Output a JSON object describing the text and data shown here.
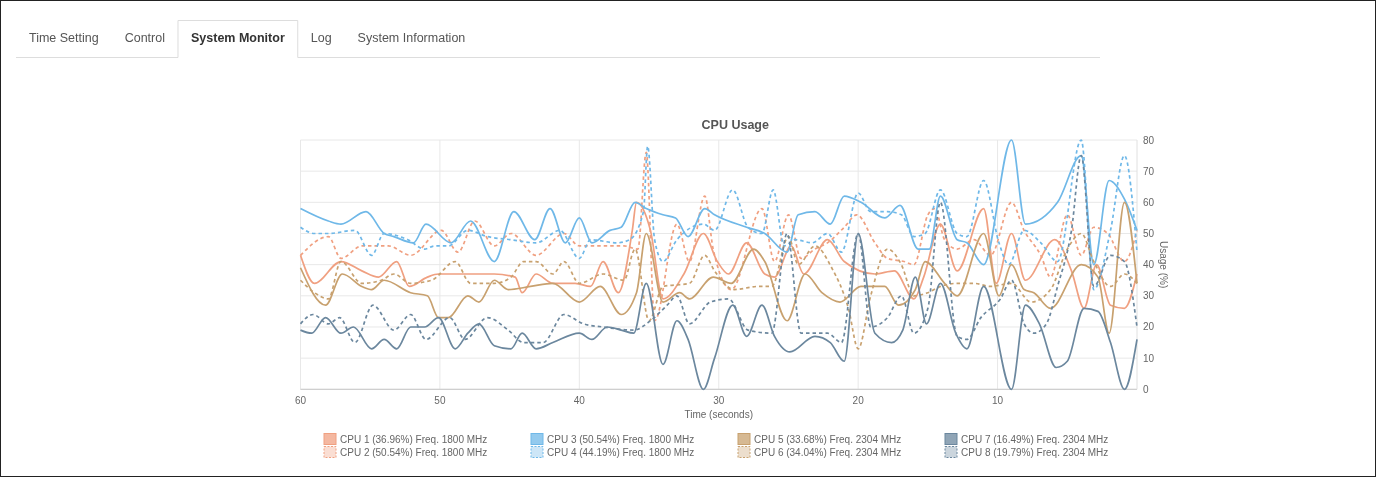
{
  "chart_data": {
    "type": "line",
    "title": "CPU Usage",
    "xlabel": "Time (seconds)",
    "ylabel": "Usage (%)",
    "annotations": [
      "Time Setting",
      "Control",
      "System Monitor",
      "Log",
      "System Information"
    ],
    "xlim": [
      60,
      0
    ],
    "xticks": [
      60,
      50,
      40,
      30,
      20,
      10
    ],
    "ylim": [
      0,
      80
    ],
    "yticks": [
      0,
      10,
      20,
      30,
      40,
      50,
      60,
      70,
      80
    ],
    "grid": true,
    "legend": "bottom",
    "series": [
      {
        "name": "CPU 1 (36.96%) Freq. 1800 MHz",
        "color": "#f0a081",
        "line_style": "solid",
        "x": [
          60,
          59,
          57.1,
          55.6,
          54.4,
          53.1,
          52.2,
          50.9,
          50.1,
          48.5,
          46.1,
          44.6,
          44.1,
          43.1,
          41.9,
          40.3,
          39.2,
          38.3,
          37.2,
          36.2,
          35.9,
          34.9,
          34,
          32.5,
          31.1,
          30.1,
          29.3,
          28,
          26.7,
          26,
          24.8,
          23.9,
          22.2,
          21,
          18.8,
          17.4,
          16,
          15.3,
          14.1,
          12.9,
          11,
          10.1,
          9,
          8,
          5.9,
          4.7,
          3.8,
          2.9,
          1.9,
          0.9,
          0
        ],
        "values": [
          43,
          34,
          41,
          38,
          36,
          41,
          33,
          36,
          37,
          37,
          37,
          36,
          31,
          37,
          34,
          34,
          33,
          41,
          31,
          51,
          60,
          51,
          29,
          37,
          50,
          41,
          37,
          47,
          37,
          36,
          46,
          37,
          48,
          41,
          37,
          38,
          29,
          36,
          53,
          38,
          58,
          34,
          50,
          35,
          48,
          38,
          26,
          40,
          27,
          26,
          37
        ]
      },
      {
        "name": "CPU 2 (50.54%) Freq. 1800 MHz",
        "color": "#f0a081",
        "line_style": "dashed",
        "x": [
          60,
          58,
          57.1,
          55.6,
          53.7,
          52.1,
          49.9,
          48.7,
          47.5,
          46.1,
          44.9,
          43.1,
          41.1,
          40,
          38.5,
          36.8,
          35.8,
          35.2,
          34.6,
          33,
          32.1,
          31,
          30.4,
          29.1,
          26.9,
          26,
          25,
          24.1,
          23.1,
          22.2,
          21,
          20.1,
          18.8,
          17.9,
          16.7,
          16,
          15,
          14.5,
          13.8,
          12.9,
          11.7,
          10.5,
          9,
          8.1,
          6.9,
          6.2,
          5,
          4,
          3.1,
          2.1,
          0.9,
          0
        ],
        "values": [
          43,
          49,
          42,
          46,
          46,
          43,
          51,
          44,
          54,
          46,
          50,
          43,
          50,
          46,
          46,
          46,
          45,
          76,
          22,
          53,
          41,
          62,
          45,
          32,
          58,
          41,
          56,
          42,
          45,
          47,
          52,
          56,
          47,
          42,
          41,
          40,
          56,
          58,
          48,
          45,
          48,
          43,
          60,
          51,
          43,
          36,
          56,
          43,
          52,
          50,
          41,
          51
        ]
      },
      {
        "name": "CPU 3 (50.54%) Freq. 1800 MHz",
        "color": "#6fb8e8",
        "line_style": "solid",
        "x": [
          60,
          58,
          57.1,
          55.3,
          54,
          53.3,
          51.9,
          51,
          49.2,
          47.8,
          46.1,
          44.7,
          43.2,
          42.1,
          41,
          40,
          39.1,
          37.8,
          37,
          36,
          35.2,
          34,
          33.1,
          32.2,
          31,
          30.3,
          28,
          26.7,
          25.1,
          24.3,
          23.1,
          22,
          21,
          19.8,
          18.1,
          17,
          15.7,
          14.9,
          14.1,
          12.9,
          12.2,
          11,
          9,
          8,
          5.7,
          4,
          3.1,
          2,
          0.9,
          0
        ],
        "values": [
          58,
          54,
          53,
          57,
          50,
          49,
          47,
          53,
          47,
          54,
          41,
          57,
          48,
          58,
          47,
          55,
          47,
          51,
          52,
          60,
          58,
          56,
          55,
          49,
          58,
          56,
          52,
          50,
          44,
          56,
          57,
          53,
          62,
          60,
          55,
          59,
          45,
          45,
          62,
          48,
          47,
          40,
          80,
          53,
          60,
          75,
          40,
          67,
          61,
          51
        ]
      },
      {
        "name": "CPU 4 (44.19%) Freq. 1800 MHz",
        "color": "#6fb8e8",
        "line_style": "dashed",
        "x": [
          60,
          59,
          58,
          56.1,
          54.9,
          54,
          52.3,
          51.1,
          50.4,
          49.4,
          48,
          46.6,
          44.9,
          43.1,
          41.4,
          40,
          39.2,
          37.3,
          36.4,
          35.4,
          35.1,
          34.6,
          34,
          33,
          31.1,
          30.3,
          29,
          27.9,
          26.9,
          26.1,
          25.3,
          24.5,
          23.3,
          22.2,
          21.2,
          20,
          19.1,
          17.9,
          16.9,
          16,
          15.2,
          14.1,
          12.9,
          12.2,
          11,
          9.9,
          9.2,
          8.1,
          6.9,
          5.7,
          4,
          3.1,
          1.9,
          0.9,
          0
        ],
        "values": [
          52,
          50,
          50,
          51,
          43,
          50,
          48,
          45,
          46,
          46,
          51,
          49,
          48,
          47,
          51,
          42,
          48,
          47,
          48,
          57,
          78,
          48,
          41,
          48,
          53,
          51,
          64,
          52,
          50,
          64,
          46,
          48,
          47,
          50,
          44,
          63,
          57,
          57,
          56,
          49,
          50,
          64,
          50,
          49,
          67,
          47,
          40,
          51,
          47,
          41,
          80,
          32,
          51,
          75,
          44
        ]
      },
      {
        "name": "CPU 5 (33.68%) Freq. 2304 MHz",
        "color": "#c8a16f",
        "line_style": "solid",
        "x": [
          60,
          58.2,
          57,
          55.6,
          54.9,
          54,
          52.1,
          50.9,
          50.1,
          49.4,
          48,
          47.2,
          46.1,
          45.1,
          43.5,
          41.9,
          40,
          38.5,
          37,
          35.9,
          35.2,
          34,
          32.8,
          32.1,
          30.4,
          29.1,
          27.5,
          26.7,
          25.1,
          23.8,
          22.6,
          21.3,
          19.8,
          18.1,
          17.1,
          15.9,
          15.2,
          13.8,
          12.9,
          11,
          9.9,
          9,
          8.1,
          7.4,
          6.2,
          4,
          2.8,
          2,
          0.9,
          0
        ],
        "values": [
          39,
          27,
          37,
          33,
          32,
          35,
          31,
          30,
          23,
          23,
          30,
          28,
          35,
          32,
          33,
          34,
          28,
          33,
          24,
          31,
          50,
          28,
          31,
          29,
          36,
          34,
          45,
          41,
          22,
          37,
          31,
          28,
          33,
          33,
          27,
          32,
          41,
          34,
          30,
          50,
          30,
          40,
          32,
          31,
          26,
          40,
          36,
          18,
          60,
          34
        ]
      },
      {
        "name": "CPU 6 (34.04%) Freq. 2304 MHz",
        "color": "#c8a16f",
        "line_style": "dashed",
        "x": [
          60,
          59,
          58,
          57.1,
          55.6,
          54.2,
          53.3,
          52.1,
          50.6,
          48.9,
          47.8,
          46.1,
          44.9,
          44,
          43.1,
          41.9,
          41.1,
          40,
          38.3,
          36.8,
          36,
          35,
          34,
          32.1,
          31,
          30.3,
          28.9,
          27.2,
          26.2,
          25,
          24.3,
          23.1,
          21.9,
          20.7,
          20,
          19.1,
          17.9,
          16.9,
          16,
          15,
          14.1,
          12.9,
          11.7,
          10.5,
          9,
          7.6,
          6.2,
          5,
          4,
          3.1,
          1.9,
          0.9,
          0
        ],
        "values": [
          35,
          31,
          29,
          41,
          34,
          35,
          37,
          34,
          35,
          41,
          34,
          34,
          36,
          41,
          41,
          37,
          41,
          34,
          37,
          35,
          45,
          22,
          33,
          34,
          43,
          38,
          32,
          33,
          33,
          49,
          40,
          46,
          39,
          26,
          13,
          30,
          45,
          40,
          30,
          31,
          33,
          34,
          34,
          33,
          34,
          28,
          32,
          45,
          50,
          41,
          33,
          37,
          34
        ]
      },
      {
        "name": "CPU 7 (16.49%) Freq. 2304 MHz",
        "color": "#6b879e",
        "line_style": "solid",
        "x": [
          60,
          59.2,
          58.2,
          57.1,
          56.2,
          54.9,
          54,
          53.1,
          52.1,
          51.1,
          50.1,
          48.9,
          48,
          47.2,
          46.1,
          44.9,
          44.1,
          43.1,
          41.9,
          40,
          39.1,
          38,
          37,
          36.1,
          35.2,
          34,
          33,
          32.2,
          31.1,
          30.3,
          29,
          28,
          26.9,
          26,
          24.9,
          23.1,
          22,
          21,
          20,
          18.8,
          17.6,
          16.8,
          15.9,
          15.1,
          14.1,
          13,
          12.2,
          11,
          9,
          8,
          7,
          5.8,
          5,
          3.8,
          2.8,
          1.9,
          0.9,
          0
        ],
        "values": [
          19,
          18,
          23,
          18,
          20,
          13,
          16,
          13,
          20,
          20,
          23,
          13,
          18,
          21,
          14,
          13,
          18,
          13,
          15,
          18,
          16,
          20,
          19,
          18,
          34,
          8,
          22,
          16,
          0,
          10,
          27,
          17,
          27,
          17,
          12,
          17,
          15,
          9,
          50,
          18,
          15,
          19,
          36,
          21,
          34,
          18,
          13,
          33,
          0,
          27,
          21,
          7,
          9,
          26,
          25,
          15,
          0,
          16
        ]
      },
      {
        "name": "CPU 8 (19.79%) Freq. 2304 MHz",
        "color": "#6b879e",
        "line_style": "dashed",
        "x": [
          60,
          59.1,
          58,
          57.2,
          56.1,
          54.8,
          53.3,
          52.1,
          51,
          49.3,
          48.2,
          46.6,
          45.1,
          44,
          42.6,
          41.1,
          39.7,
          38.3,
          36.1,
          34.9,
          33.7,
          33,
          32.1,
          30.6,
          29.3,
          27.9,
          26.2,
          25.1,
          24.1,
          22.2,
          21.2,
          20,
          19.1,
          17.9,
          16.9,
          16,
          15,
          14.1,
          12.9,
          12.2,
          11.2,
          9.8,
          9,
          8.1,
          7.4,
          6.5,
          5.7,
          4.7,
          4,
          3.1,
          1.9,
          0.9,
          0
        ],
        "values": [
          21,
          24,
          21,
          23,
          15,
          27,
          19,
          24,
          16,
          23,
          16,
          23,
          19,
          15,
          15,
          24,
          21,
          20,
          19,
          22,
          27,
          30,
          21,
          28,
          29,
          19,
          18,
          50,
          18,
          18,
          15,
          50,
          20,
          23,
          30,
          18,
          26,
          60,
          17,
          16,
          23,
          29,
          35,
          21,
          18,
          21,
          33,
          51,
          75,
          33,
          43,
          41,
          20
        ]
      }
    ]
  }
}
